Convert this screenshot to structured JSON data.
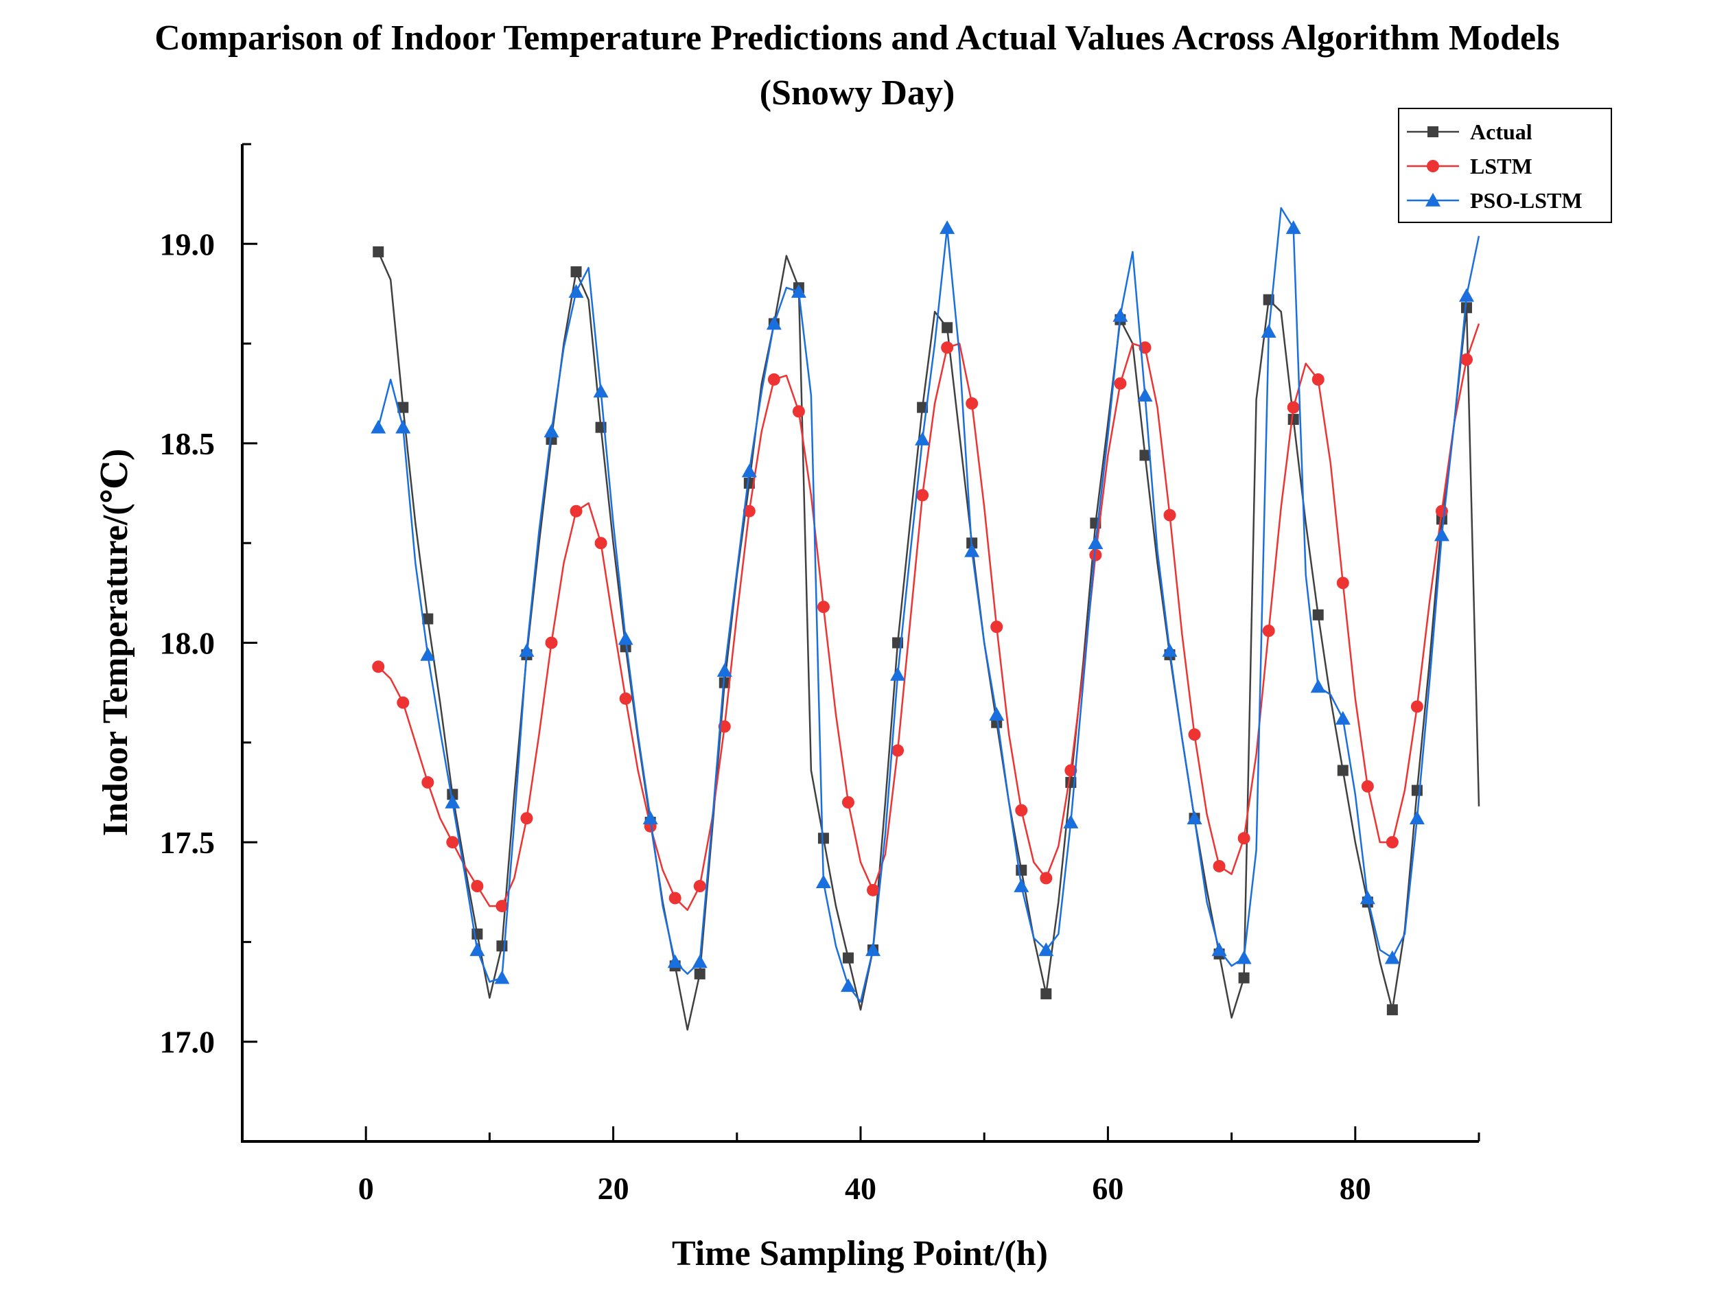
{
  "chart_data": {
    "type": "line",
    "title": "Comparison of Indoor Temperature Predictions and Actual Values Across Algorithm Models",
    "subtitle": "(Snowy Day)",
    "xlabel": "Time Sampling Point/(h)",
    "ylabel": "Indoor Temperature/(℃)",
    "xlim": [
      -10,
      90
    ],
    "ylim": [
      16.75,
      19.25
    ],
    "xticks": [
      0,
      20,
      40,
      60,
      80
    ],
    "xtick_labels": [
      "0",
      "20",
      "40",
      "60",
      "80"
    ],
    "yticks": [
      17.0,
      17.5,
      18.0,
      18.5,
      19.0
    ],
    "ytick_labels": [
      "17.0",
      "17.5",
      "18.0",
      "18.5",
      "19.0"
    ],
    "grid": false,
    "legend_position": "top-right",
    "series": [
      {
        "name": "Actual",
        "color": "#404040",
        "marker": "square",
        "x": [
          1,
          2,
          3,
          4,
          5,
          6,
          7,
          8,
          9,
          10,
          11,
          12,
          13,
          14,
          15,
          16,
          17,
          18,
          19,
          20,
          21,
          22,
          23,
          24,
          25,
          26,
          27,
          28,
          29,
          30,
          31,
          32,
          33,
          34,
          35,
          36,
          37,
          38,
          39,
          40,
          41,
          42,
          43,
          44,
          45,
          46,
          47,
          48,
          49,
          50,
          51,
          52,
          53,
          54,
          55,
          56,
          57,
          58,
          59,
          60,
          61,
          62,
          63,
          64,
          65,
          66,
          67,
          68,
          69,
          70,
          71,
          72,
          73,
          74,
          75,
          76,
          77,
          78,
          79,
          80,
          81,
          82,
          83,
          84,
          85,
          86,
          87,
          88,
          89,
          90
        ],
        "values": [
          18.98,
          18.91,
          18.59,
          18.3,
          18.06,
          17.85,
          17.62,
          17.44,
          17.27,
          17.11,
          17.24,
          17.62,
          17.97,
          18.25,
          18.51,
          18.75,
          18.93,
          18.86,
          18.54,
          18.25,
          17.99,
          17.76,
          17.55,
          17.35,
          17.19,
          17.03,
          17.17,
          17.53,
          17.9,
          18.17,
          18.4,
          18.65,
          18.8,
          18.97,
          18.89,
          17.68,
          17.51,
          17.34,
          17.21,
          17.08,
          17.23,
          17.6,
          18.0,
          18.3,
          18.59,
          18.83,
          18.79,
          18.52,
          18.25,
          18.0,
          17.8,
          17.6,
          17.43,
          17.26,
          17.12,
          17.35,
          17.65,
          17.95,
          18.3,
          18.55,
          18.81,
          18.75,
          18.47,
          18.2,
          17.97,
          17.76,
          17.56,
          17.38,
          17.22,
          17.06,
          17.16,
          18.61,
          18.86,
          18.83,
          18.56,
          18.3,
          18.07,
          17.86,
          17.68,
          17.5,
          17.35,
          17.2,
          17.08,
          17.28,
          17.63,
          17.95,
          18.31,
          18.55,
          18.84,
          17.59
        ]
      },
      {
        "name": "LSTM",
        "color": "#ee3333",
        "marker": "circle",
        "x": [
          1,
          2,
          3,
          4,
          5,
          6,
          7,
          8,
          9,
          10,
          11,
          12,
          13,
          14,
          15,
          16,
          17,
          18,
          19,
          20,
          21,
          22,
          23,
          24,
          25,
          26,
          27,
          28,
          29,
          30,
          31,
          32,
          33,
          34,
          35,
          36,
          37,
          38,
          39,
          40,
          41,
          42,
          43,
          44,
          45,
          46,
          47,
          48,
          49,
          50,
          51,
          52,
          53,
          54,
          55,
          56,
          57,
          58,
          59,
          60,
          61,
          62,
          63,
          64,
          65,
          66,
          67,
          68,
          69,
          70,
          71,
          72,
          73,
          74,
          75,
          76,
          77,
          78,
          79,
          80,
          81,
          82,
          83,
          84,
          85,
          86,
          87,
          88,
          89,
          90
        ],
        "values": [
          17.94,
          17.91,
          17.85,
          17.75,
          17.65,
          17.56,
          17.5,
          17.44,
          17.39,
          17.34,
          17.34,
          17.41,
          17.56,
          17.77,
          18.0,
          18.2,
          18.33,
          18.35,
          18.25,
          18.05,
          17.86,
          17.68,
          17.54,
          17.43,
          17.36,
          17.33,
          17.39,
          17.56,
          17.79,
          18.07,
          18.33,
          18.53,
          18.66,
          18.67,
          18.58,
          18.37,
          18.09,
          17.82,
          17.6,
          17.45,
          17.38,
          17.47,
          17.73,
          18.05,
          18.37,
          18.6,
          18.74,
          18.75,
          18.6,
          18.34,
          18.04,
          17.77,
          17.58,
          17.45,
          17.41,
          17.49,
          17.68,
          17.93,
          18.22,
          18.47,
          18.65,
          18.75,
          18.74,
          18.59,
          18.32,
          18.02,
          17.77,
          17.57,
          17.44,
          17.42,
          17.51,
          17.72,
          18.03,
          18.34,
          18.59,
          18.7,
          18.66,
          18.45,
          18.15,
          17.86,
          17.64,
          17.5,
          17.5,
          17.63,
          17.84,
          18.1,
          18.33,
          18.55,
          18.71,
          18.8
        ]
      },
      {
        "name": "PSO-LSTM",
        "color": "#1a6fdf",
        "marker": "triangle",
        "x": [
          1,
          2,
          3,
          4,
          5,
          6,
          7,
          8,
          9,
          10,
          11,
          12,
          13,
          14,
          15,
          16,
          17,
          18,
          19,
          20,
          21,
          22,
          23,
          24,
          25,
          26,
          27,
          28,
          29,
          30,
          31,
          32,
          33,
          34,
          35,
          36,
          37,
          38,
          39,
          40,
          41,
          42,
          43,
          44,
          45,
          46,
          47,
          48,
          49,
          50,
          51,
          52,
          53,
          54,
          55,
          56,
          57,
          58,
          59,
          60,
          61,
          62,
          63,
          64,
          65,
          66,
          67,
          68,
          69,
          70,
          71,
          72,
          73,
          74,
          75,
          76,
          77,
          78,
          79,
          80,
          81,
          82,
          83,
          84,
          85,
          86,
          87,
          88,
          89,
          90
        ],
        "values": [
          18.54,
          18.66,
          18.54,
          18.2,
          17.97,
          17.78,
          17.6,
          17.42,
          17.23,
          17.15,
          17.16,
          17.55,
          17.98,
          18.28,
          18.53,
          18.74,
          18.88,
          18.94,
          18.63,
          18.3,
          18.01,
          17.77,
          17.56,
          17.34,
          17.2,
          17.17,
          17.2,
          17.55,
          17.93,
          18.18,
          18.43,
          18.63,
          18.8,
          18.89,
          18.88,
          18.62,
          17.4,
          17.24,
          17.14,
          17.1,
          17.23,
          17.52,
          17.92,
          18.22,
          18.51,
          18.75,
          19.04,
          18.72,
          18.23,
          18.0,
          17.82,
          17.6,
          17.39,
          17.26,
          17.23,
          17.27,
          17.55,
          17.9,
          18.25,
          18.52,
          18.82,
          18.98,
          18.62,
          18.23,
          17.98,
          17.76,
          17.56,
          17.35,
          17.23,
          17.19,
          17.21,
          17.48,
          18.78,
          19.09,
          19.04,
          18.17,
          17.89,
          17.87,
          17.81,
          17.62,
          17.36,
          17.23,
          17.21,
          17.27,
          17.56,
          17.9,
          18.27,
          18.55,
          18.87,
          19.02
        ]
      }
    ]
  }
}
